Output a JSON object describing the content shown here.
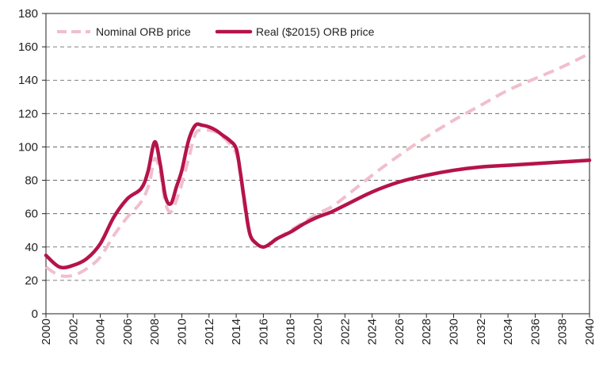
{
  "chart_data": {
    "type": "line",
    "title": "",
    "xlabel": "",
    "ylabel": "",
    "xlim": [
      2000,
      2040
    ],
    "ylim": [
      0,
      180
    ],
    "yticks": [
      0,
      20,
      40,
      60,
      80,
      100,
      120,
      140,
      160,
      180
    ],
    "xticks": [
      "2000",
      "2002",
      "2004",
      "2006",
      "2008",
      "2010",
      "2012",
      "2014",
      "2016",
      "2018",
      "2020",
      "2022",
      "2024",
      "2026",
      "2028",
      "2030",
      "2032",
      "2034",
      "2036",
      "2038",
      "2040"
    ],
    "legend_position": "top-left",
    "colors": {
      "nominal": "#f0bfcc",
      "real": "#b5134b",
      "grid": "#555555"
    },
    "series": [
      {
        "name": "Nominal ORB price",
        "style": "dashed",
        "x": [
          2000,
          2001,
          2002,
          2003,
          2004,
          2005,
          2006,
          2007,
          2007.6,
          2008,
          2008.4,
          2008.8,
          2009.2,
          2009.6,
          2010,
          2010.5,
          2011,
          2011.5,
          2012,
          2012.5,
          2013,
          2013.5,
          2014,
          2014.3,
          2014.6,
          2015,
          2015.5,
          2016,
          2016.5,
          2017,
          2018,
          2019,
          2020,
          2021,
          2022,
          2024,
          2026,
          2028,
          2030,
          2032,
          2034,
          2036,
          2038,
          2040
        ],
        "values": [
          28,
          23,
          23,
          27,
          34,
          47,
          58,
          67,
          78,
          93,
          85,
          66,
          61,
          68,
          78,
          93,
          108,
          110,
          110,
          109,
          106,
          102,
          96,
          85,
          65,
          48,
          42,
          40,
          42,
          45,
          50,
          55,
          60,
          64,
          70,
          83,
          95,
          106,
          116,
          125,
          134,
          141,
          148,
          156
        ]
      },
      {
        "name": "Real ($2015) ORB price",
        "style": "solid",
        "x": [
          2000,
          2001,
          2002,
          2003,
          2004,
          2005,
          2006,
          2007,
          2007.5,
          2008,
          2008.4,
          2008.8,
          2009.2,
          2009.6,
          2010,
          2010.5,
          2011,
          2011.5,
          2012,
          2012.5,
          2013,
          2013.5,
          2014,
          2014.3,
          2014.6,
          2015,
          2015.5,
          2016,
          2016.5,
          2017,
          2018,
          2019,
          2020,
          2021,
          2022,
          2024,
          2026,
          2028,
          2030,
          2032,
          2034,
          2036,
          2038,
          2040
        ],
        "values": [
          35,
          28,
          29,
          33,
          42,
          58,
          69,
          75,
          85,
          103,
          90,
          70,
          66,
          76,
          86,
          104,
          113,
          113,
          112,
          110,
          107,
          104,
          99,
          85,
          68,
          48,
          42,
          40,
          42,
          45,
          49,
          54,
          58,
          61,
          65,
          73,
          79,
          83,
          86,
          88,
          89,
          90,
          91,
          92
        ]
      }
    ]
  }
}
